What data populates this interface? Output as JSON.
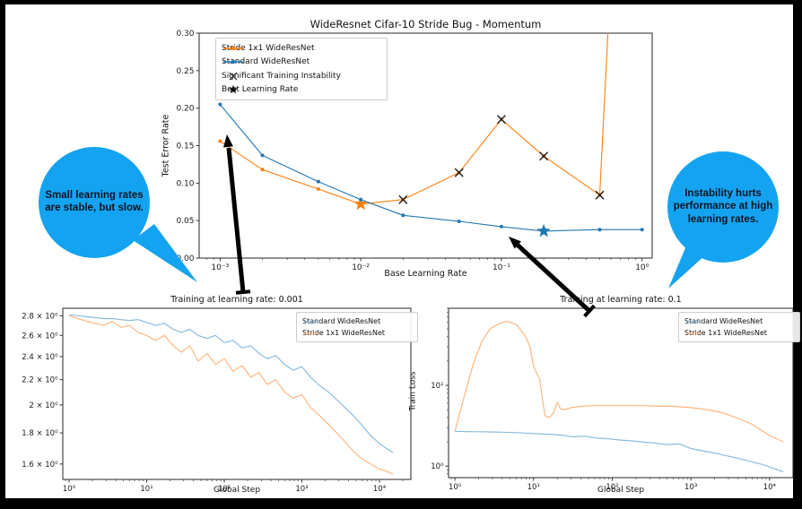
{
  "figure": {
    "background": "#ffffff",
    "outer_frame_color": "#000000",
    "annotation_arrow_color": "#000000"
  },
  "annotations": {
    "left_bubble": {
      "text": "Small learning rates are stable, but slow.",
      "fill": "#14a3f0",
      "text_color": "#0b1320"
    },
    "right_bubble": {
      "text": "Instability hurts performance at high learning rates.",
      "fill": "#14a3f0",
      "text_color": "#0b1320"
    }
  },
  "chart_data": [
    {
      "id": "learning-rate-sweep",
      "type": "line",
      "title": "WideResnet Cifar-10 Stride Bug - Momentum",
      "xlabel": "Base Learning Rate",
      "ylabel": "Test Error Rate",
      "xscale": "log",
      "yscale": "linear",
      "xlim": [
        0.00071,
        1.18
      ],
      "ylim": [
        0,
        0.3
      ],
      "grid": false,
      "legend_position": "upper left",
      "x_ticks": [
        {
          "v": 0.001,
          "label": "10⁻³"
        },
        {
          "v": 0.01,
          "label": "10⁻²"
        },
        {
          "v": 0.1,
          "label": "10⁻¹"
        },
        {
          "v": 1,
          "label": "10⁰"
        }
      ],
      "y_ticks": [
        {
          "v": 0.0,
          "label": "0.00"
        },
        {
          "v": 0.05,
          "label": "0.05"
        },
        {
          "v": 0.1,
          "label": "0.10"
        },
        {
          "v": 0.15,
          "label": "0.15"
        },
        {
          "v": 0.2,
          "label": "0.20"
        },
        {
          "v": 0.25,
          "label": "0.25"
        },
        {
          "v": 0.3,
          "label": "0.30"
        }
      ],
      "legend": [
        {
          "label": "Stride 1x1 WideResNet",
          "glyph": "line-dot",
          "color": "#ff7f0e"
        },
        {
          "label": "Standard WideResNet",
          "glyph": "line-dot",
          "color": "#1f77b4"
        },
        {
          "label": "Significant Training Instability",
          "glyph": "x",
          "color": "#3a3a3a"
        },
        {
          "label": "Best Learning Rate",
          "glyph": "star",
          "color": "#000000"
        }
      ],
      "series": [
        {
          "name": "Stride 1x1 WideResNet",
          "color": "#ff7f0e",
          "marker": "dot",
          "x": [
            0.001,
            0.002,
            0.005,
            0.01,
            0.02,
            0.05,
            0.1,
            0.2,
            0.5,
            1.0
          ],
          "y": [
            0.156,
            0.118,
            0.092,
            0.072,
            0.078,
            0.114,
            0.185,
            0.136,
            0.084,
            1.2
          ],
          "best_lr_star": {
            "x": 0.01,
            "y": 0.072
          },
          "instability_x_markers": [
            {
              "x": 0.02,
              "y": 0.078
            },
            {
              "x": 0.05,
              "y": 0.114
            },
            {
              "x": 0.1,
              "y": 0.185
            },
            {
              "x": 0.2,
              "y": 0.136
            },
            {
              "x": 0.5,
              "y": 0.084
            }
          ]
        },
        {
          "name": "Standard WideResNet",
          "color": "#1f77b4",
          "marker": "dot",
          "x": [
            0.001,
            0.002,
            0.005,
            0.01,
            0.02,
            0.05,
            0.1,
            0.2,
            0.5,
            1.0
          ],
          "y": [
            0.205,
            0.137,
            0.102,
            0.078,
            0.057,
            0.049,
            0.042,
            0.036,
            0.038,
            0.038
          ],
          "best_lr_star": {
            "x": 0.2,
            "y": 0.036
          },
          "instability_x_markers": []
        }
      ]
    },
    {
      "id": "training-curve-lr-0.001",
      "type": "line",
      "title": "Training at learning rate: 0.001",
      "xlabel": "Global Step",
      "ylabel": "",
      "xscale": "log",
      "yscale": "log",
      "xlim": [
        0.83,
        25400
      ],
      "ylim": [
        1.51,
        2.88
      ],
      "grid": false,
      "legend_position": "upper right",
      "x_ticks": [
        {
          "v": 1,
          "label": "10⁰"
        },
        {
          "v": 10,
          "label": "10¹"
        },
        {
          "v": 100,
          "label": "10²"
        },
        {
          "v": 1000,
          "label": "10³"
        },
        {
          "v": 10000,
          "label": "10⁴"
        }
      ],
      "y_ticks": [
        {
          "v": 1.6,
          "label": "1.6 × 10⁰"
        },
        {
          "v": 1.8,
          "label": "1.8 × 10⁰"
        },
        {
          "v": 2.0,
          "label": "2 × 10⁰"
        },
        {
          "v": 2.2,
          "label": "2.2 × 10⁰"
        },
        {
          "v": 2.4,
          "label": "2.4 × 10⁰"
        },
        {
          "v": 2.6,
          "label": "2.6 × 10⁰"
        },
        {
          "v": 2.8,
          "label": "2.8 × 10⁰"
        }
      ],
      "legend": [
        {
          "label": "Standard WideResNet",
          "glyph": "line",
          "color": "#89bcdf"
        },
        {
          "label": "Stride 1x1 WideResNet",
          "glyph": "line",
          "color": "#ffb780"
        }
      ],
      "series": [
        {
          "name": "Standard WideResNet",
          "color": "#89bcdf",
          "marker": "none",
          "x": [
            1,
            1.3,
            1.7,
            2.2,
            2.8,
            3.6,
            4.6,
            6,
            7.7,
            10,
            13,
            17,
            22,
            28,
            36,
            46,
            60,
            77,
            100,
            130,
            170,
            220,
            280,
            360,
            460,
            600,
            770,
            1000,
            1300,
            1700,
            2200,
            2800,
            3600,
            4600,
            6000,
            7700,
            10000,
            12000,
            15000
          ],
          "y": [
            2.81,
            2.8,
            2.79,
            2.78,
            2.77,
            2.77,
            2.76,
            2.75,
            2.76,
            2.73,
            2.7,
            2.72,
            2.66,
            2.63,
            2.66,
            2.6,
            2.57,
            2.6,
            2.53,
            2.55,
            2.48,
            2.5,
            2.43,
            2.38,
            2.41,
            2.33,
            2.28,
            2.31,
            2.22,
            2.15,
            2.1,
            2.04,
            1.98,
            1.92,
            1.85,
            1.78,
            1.73,
            1.7,
            1.67
          ]
        },
        {
          "name": "Stride 1x1 WideResNet",
          "color": "#ffb780",
          "marker": "none",
          "x": [
            1,
            1.3,
            1.7,
            2.2,
            2.8,
            3.6,
            4.6,
            6,
            7.7,
            10,
            13,
            17,
            22,
            28,
            36,
            46,
            60,
            77,
            100,
            130,
            170,
            220,
            280,
            360,
            460,
            600,
            770,
            1000,
            1300,
            1700,
            2200,
            2800,
            3600,
            4600,
            6000,
            7700,
            10000,
            12000,
            15000
          ],
          "y": [
            2.8,
            2.77,
            2.74,
            2.72,
            2.7,
            2.74,
            2.68,
            2.7,
            2.63,
            2.6,
            2.55,
            2.6,
            2.5,
            2.44,
            2.5,
            2.36,
            2.43,
            2.33,
            2.38,
            2.27,
            2.32,
            2.22,
            2.26,
            2.16,
            2.2,
            2.1,
            2.05,
            2.08,
            1.98,
            1.92,
            1.86,
            1.8,
            1.74,
            1.68,
            1.63,
            1.6,
            1.57,
            1.56,
            1.54
          ]
        }
      ]
    },
    {
      "id": "training-curve-lr-0.1",
      "type": "line",
      "title": "Training at learning rate: 0.1",
      "xlabel": "Global Step",
      "ylabel": "Train Loss",
      "xscale": "log",
      "yscale": "log",
      "xlim": [
        0.83,
        19900
      ],
      "ylim": [
        0.72,
        90
      ],
      "grid": false,
      "legend_position": "upper right",
      "y_minor_log": true,
      "x_ticks": [
        {
          "v": 1,
          "label": "10⁰"
        },
        {
          "v": 10,
          "label": "10¹"
        },
        {
          "v": 100,
          "label": "10²"
        },
        {
          "v": 1000,
          "label": "10³"
        },
        {
          "v": 10000,
          "label": "10⁴"
        }
      ],
      "y_ticks": [
        {
          "v": 1,
          "label": "10⁰"
        },
        {
          "v": 10,
          "label": "10¹"
        }
      ],
      "legend": [
        {
          "label": "Standard WideResNet",
          "glyph": "line",
          "color": "#89bcdf"
        },
        {
          "label": "Stride 1x1 WideResNet",
          "glyph": "line",
          "color": "#ffb780"
        }
      ],
      "series": [
        {
          "name": "Standard WideResNet",
          "color": "#89bcdf",
          "marker": "none",
          "x": [
            1,
            1.4,
            2,
            2.8,
            4,
            5.6,
            8,
            11,
            16,
            22,
            32,
            45,
            64,
            90,
            128,
            180,
            256,
            360,
            512,
            720,
            1000,
            1400,
            2000,
            2800,
            4000,
            5600,
            8000,
            10000,
            12000,
            14000,
            15000
          ],
          "y": [
            2.7,
            2.68,
            2.66,
            2.65,
            2.63,
            2.6,
            2.56,
            2.52,
            2.48,
            2.42,
            2.3,
            2.35,
            2.22,
            2.18,
            2.1,
            2.05,
            1.98,
            1.92,
            1.85,
            1.88,
            1.65,
            1.55,
            1.45,
            1.35,
            1.25,
            1.15,
            1.05,
            0.98,
            0.92,
            0.87,
            0.85
          ]
        },
        {
          "name": "Stride 1x1 WideResNet",
          "color": "#ffb780",
          "marker": "none",
          "x": [
            1,
            1.3,
            1.7,
            2.2,
            2.8,
            3.6,
            4.6,
            6,
            7.7,
            9,
            10,
            11,
            12,
            13,
            14,
            16,
            18,
            20,
            22,
            25,
            30,
            40,
            60,
            100,
            160,
            250,
            400,
            600,
            1000,
            1600,
            2500,
            4000,
            6000,
            10000,
            15000
          ],
          "y": [
            2.7,
            7,
            18,
            35,
            50,
            58,
            62,
            57,
            42,
            30,
            17,
            14,
            12,
            6.5,
            4.2,
            4.0,
            4.6,
            6.2,
            5.1,
            5.0,
            5.3,
            5.5,
            5.6,
            5.6,
            5.6,
            5.6,
            5.5,
            5.5,
            5.3,
            5.0,
            4.6,
            3.9,
            3.3,
            2.4,
            2.0
          ]
        }
      ]
    }
  ]
}
